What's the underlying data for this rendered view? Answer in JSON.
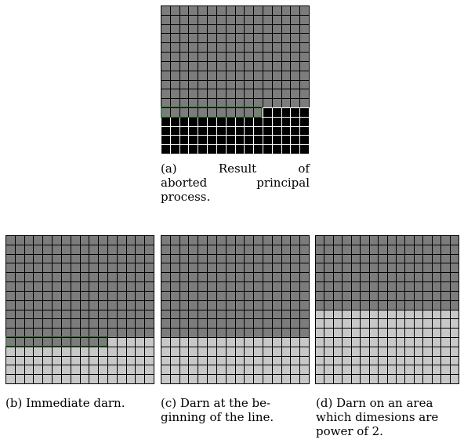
{
  "panels": [
    {
      "id": "a",
      "caption_lines": [
        "(a)",
        "Result",
        "of",
        "aborted",
        "principal",
        "process."
      ],
      "grid": {
        "rows": 16,
        "cols": 16,
        "filled_rows": 11,
        "partial_cells": 11,
        "rest_color": "#000000",
        "fill_color": "#7c7c7c"
      }
    },
    {
      "id": "b",
      "caption": "(b) Immediate darn.",
      "grid": {
        "rows": 16,
        "cols": 16,
        "filled_rows": 11,
        "partial_cells": 11,
        "rest_color": "#c8c8c8",
        "fill_color": "#7c7c7c"
      }
    },
    {
      "id": "c",
      "caption_lines": [
        "(c) Darn at the be-",
        "ginning of the line."
      ],
      "grid": {
        "rows": 16,
        "cols": 16,
        "filled_rows": 11,
        "partial_cells": 0,
        "rest_color": "#c8c8c8",
        "fill_color": "#7c7c7c"
      }
    },
    {
      "id": "d",
      "caption_lines": [
        "(d) Darn on an area",
        "which dimesions are",
        "power of 2."
      ],
      "grid": {
        "rows": 16,
        "cols": 16,
        "filled_rows": 8,
        "partial_cells": 0,
        "rest_color": "#c8c8c8",
        "fill_color": "#7c7c7c"
      }
    }
  ],
  "highlight_color": "#1b6b1b"
}
